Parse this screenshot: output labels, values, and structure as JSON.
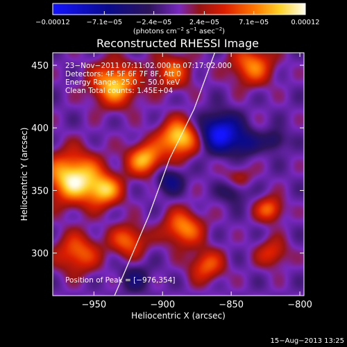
{
  "chart_data": {
    "type": "heatmap",
    "title": "Reconstructed RHESSI Image",
    "xlabel": "Heliocentric X (arcsec)",
    "ylabel": "Heliocentric Y (arcsec)",
    "xlim": [
      -980,
      -797
    ],
    "ylim": [
      266,
      460
    ],
    "x_ticks": [
      -950,
      -900,
      -850,
      -800
    ],
    "x_tick_labels": [
      "−950",
      "−900",
      "−850",
      "−800"
    ],
    "y_ticks": [
      300,
      350,
      400,
      450
    ],
    "y_tick_labels": [
      "300",
      "350",
      "400",
      "450"
    ],
    "colorbar": {
      "range": [
        -0.00012,
        0.00012
      ],
      "ticks": [
        -0.00012,
        -7.1e-05,
        -2.4e-05,
        2.4e-05,
        7.1e-05,
        0.00012
      ],
      "tick_labels": [
        "−0.00012",
        "−7.1e−05",
        "−2.4e−05",
        "2.4e−05",
        "7.1e−05",
        "0.00012"
      ],
      "units_text": "(photons cm",
      "units_exp1": "−2",
      "units_mid": " s",
      "units_exp2": "−1",
      "units_mid2": " asec",
      "units_exp3": "−2",
      "units_close": ")"
    },
    "annotations": [
      "23−Nov−2011 07:11:02.000 to 07:17:02.000",
      "Detectors: 4F 5F 6F 7F 8F, Att 0",
      "Energy Range: 25.0 − 50.0 keV",
      "Clean     Total counts: 1.45E+04"
    ],
    "peak_label": "Position of Peak = [−976,354]",
    "limb_line": [
      [
        -935,
        266
      ],
      [
        -910,
        330
      ],
      [
        -895,
        375
      ],
      [
        -877,
        415
      ],
      [
        -862,
        460
      ]
    ],
    "sources": [
      {
        "x": -965,
        "y": 360,
        "sigma": 14,
        "amp": 1.0
      },
      {
        "x": -942,
        "y": 350,
        "sigma": 9,
        "amp": 0.7
      },
      {
        "x": -935,
        "y": 435,
        "sigma": 12,
        "amp": 0.85
      },
      {
        "x": -913,
        "y": 375,
        "sigma": 9,
        "amp": 0.8
      },
      {
        "x": -888,
        "y": 392,
        "sigma": 10,
        "amp": 0.95
      },
      {
        "x": -893,
        "y": 445,
        "sigma": 10,
        "amp": 0.55
      },
      {
        "x": -962,
        "y": 300,
        "sigma": 11,
        "amp": 0.6
      },
      {
        "x": -925,
        "y": 310,
        "sigma": 9,
        "amp": 0.6
      },
      {
        "x": -885,
        "y": 320,
        "sigma": 10,
        "amp": 0.7
      },
      {
        "x": -868,
        "y": 290,
        "sigma": 9,
        "amp": 0.55
      },
      {
        "x": -835,
        "y": 450,
        "sigma": 11,
        "amp": 0.65
      },
      {
        "x": -822,
        "y": 335,
        "sigma": 7,
        "amp": 0.6
      },
      {
        "x": -820,
        "y": 300,
        "sigma": 8,
        "amp": 0.45
      },
      {
        "x": -845,
        "y": 360,
        "sigma": 7,
        "amp": 0.35
      },
      {
        "x": -858,
        "y": 396,
        "sigma": 10,
        "amp": -0.95
      },
      {
        "x": -895,
        "y": 358,
        "sigma": 7,
        "amp": -0.45
      },
      {
        "x": -840,
        "y": 388,
        "sigma": 7,
        "amp": -0.4
      },
      {
        "x": -818,
        "y": 390,
        "sigma": 6,
        "amp": -0.35
      },
      {
        "x": -848,
        "y": 350,
        "sigma": 7,
        "amp": -0.35
      },
      {
        "x": -920,
        "y": 280,
        "sigma": 8,
        "amp": -0.3
      }
    ],
    "grid": false,
    "legend": "none"
  },
  "footer": {
    "date_stamp": "15−Aug−2013 13:25"
  }
}
